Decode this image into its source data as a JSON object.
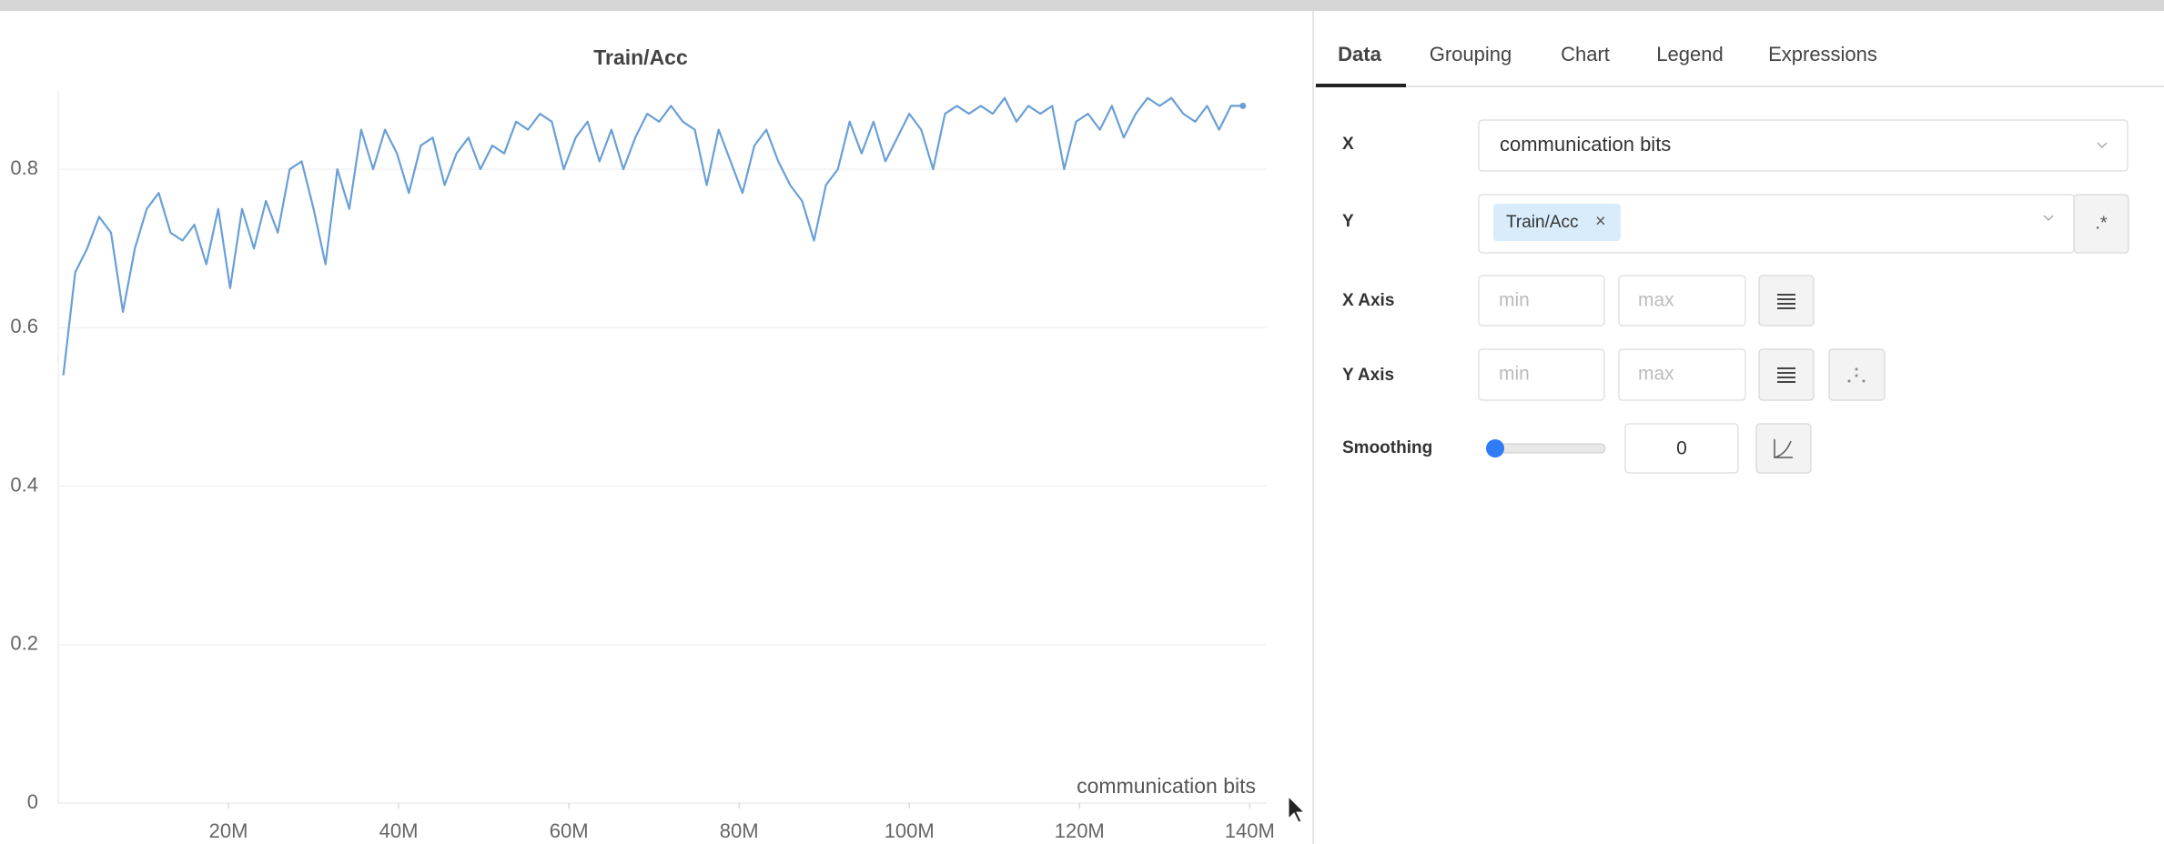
{
  "chart_data": {
    "type": "line",
    "title": "Train/Acc",
    "x_label": "communication bits",
    "x": [
      600000,
      2000000,
      3400000,
      4800000,
      6200000,
      7600000,
      9000000,
      10400000,
      11800000,
      13200000,
      14600000,
      16000000,
      17400000,
      18800000,
      20200000,
      21600000,
      23000000,
      24400000,
      25800000,
      27200000,
      28600000,
      30000000,
      31400000,
      32800000,
      34200000,
      35600000,
      37000000,
      38400000,
      39800000,
      41200000,
      42600000,
      44000000,
      45400000,
      46800000,
      48200000,
      49600000,
      51000000,
      52400000,
      53800000,
      55200000,
      56600000,
      58000000,
      59400000,
      60800000,
      62200000,
      63600000,
      65000000,
      66400000,
      67800000,
      69200000,
      70600000,
      72000000,
      73400000,
      74800000,
      76200000,
      77600000,
      79000000,
      80400000,
      81800000,
      83200000,
      84600000,
      86000000,
      87400000,
      88800000,
      90200000,
      91600000,
      93000000,
      94400000,
      95800000,
      97200000,
      98600000,
      100000000,
      101400000,
      102800000,
      104200000,
      105600000,
      107000000,
      108400000,
      109800000,
      111200000,
      112600000,
      114000000,
      115400000,
      116800000,
      118200000,
      119600000,
      121000000,
      122400000,
      123800000,
      125200000,
      126600000,
      128000000,
      129400000,
      130800000,
      132200000,
      133600000,
      135000000,
      136400000,
      137800000,
      139200000
    ],
    "series": [
      {
        "name": "Train/Acc",
        "color": "#6a9fd6",
        "values": [
          0.54,
          0.67,
          0.7,
          0.74,
          0.72,
          0.62,
          0.7,
          0.75,
          0.77,
          0.72,
          0.71,
          0.73,
          0.68,
          0.75,
          0.65,
          0.75,
          0.7,
          0.76,
          0.72,
          0.8,
          0.81,
          0.75,
          0.68,
          0.8,
          0.75,
          0.85,
          0.8,
          0.85,
          0.82,
          0.77,
          0.83,
          0.84,
          0.78,
          0.82,
          0.84,
          0.8,
          0.83,
          0.82,
          0.86,
          0.85,
          0.87,
          0.86,
          0.8,
          0.84,
          0.86,
          0.81,
          0.85,
          0.8,
          0.84,
          0.87,
          0.86,
          0.88,
          0.86,
          0.85,
          0.78,
          0.85,
          0.81,
          0.77,
          0.83,
          0.85,
          0.81,
          0.78,
          0.76,
          0.71,
          0.78,
          0.8,
          0.86,
          0.82,
          0.86,
          0.81,
          0.84,
          0.87,
          0.85,
          0.8,
          0.87,
          0.88,
          0.87,
          0.88,
          0.87,
          0.89,
          0.86,
          0.88,
          0.87,
          0.88,
          0.8,
          0.86,
          0.87,
          0.85,
          0.88,
          0.84,
          0.87,
          0.89,
          0.88,
          0.89,
          0.87,
          0.86,
          0.88,
          0.85,
          0.88,
          0.88
        ]
      }
    ],
    "xlim": [
      0,
      142000000
    ],
    "xticks": [
      {
        "value": 20000000,
        "label": "20M"
      },
      {
        "value": 40000000,
        "label": "40M"
      },
      {
        "value": 60000000,
        "label": "60M"
      },
      {
        "value": 80000000,
        "label": "80M"
      },
      {
        "value": 100000000,
        "label": "100M"
      },
      {
        "value": 120000000,
        "label": "120M"
      },
      {
        "value": 140000000,
        "label": "140M"
      }
    ],
    "ylim": [
      0,
      0.9
    ],
    "yticks": [
      0,
      0.2,
      0.4,
      0.6,
      0.8
    ],
    "grid": true
  },
  "panel": {
    "tabs": [
      "Data",
      "Grouping",
      "Chart",
      "Legend",
      "Expressions"
    ],
    "x": {
      "label": "X",
      "value": "communication bits"
    },
    "y": {
      "label": "Y",
      "chip": "Train/Acc",
      "chip_close": "×",
      "regex": ".*"
    },
    "x_axis": {
      "label": "X Axis",
      "min": "min",
      "max": "max"
    },
    "y_axis": {
      "label": "Y Axis",
      "min": "min",
      "max": "max"
    },
    "smoothing": {
      "label": "Smoothing",
      "value": 0
    }
  }
}
